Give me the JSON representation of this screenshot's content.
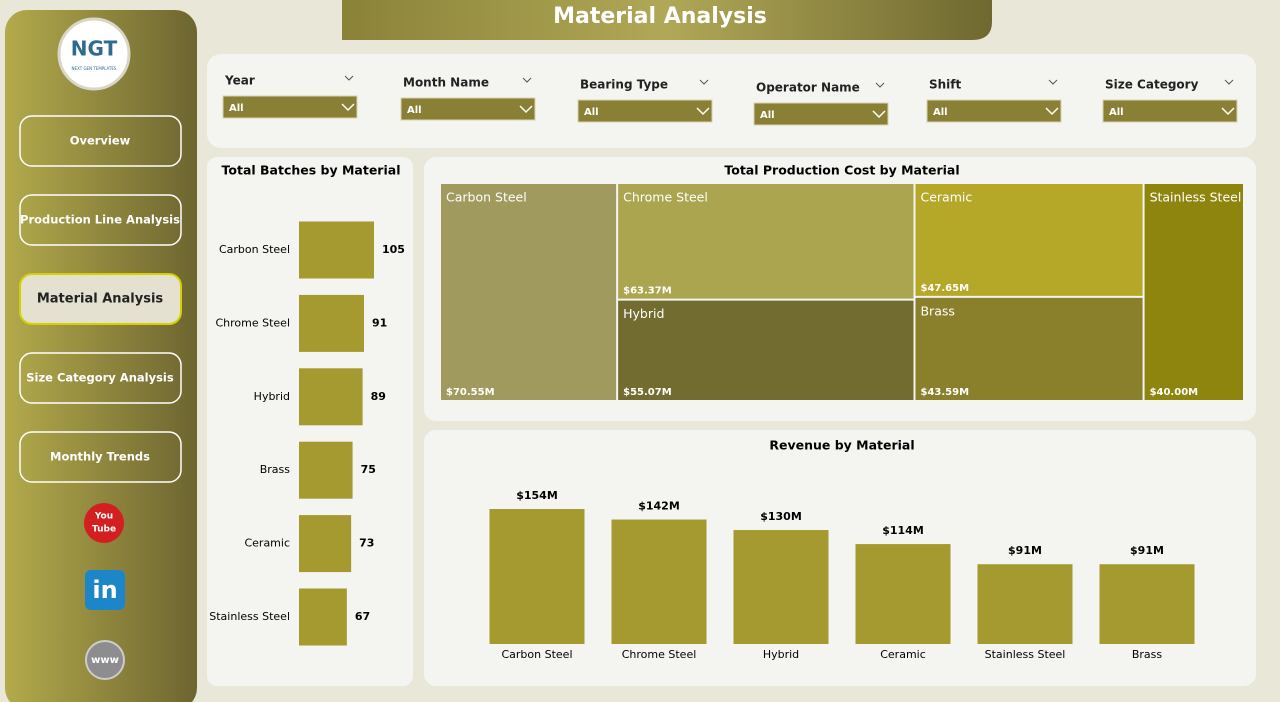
{
  "header": {
    "title": "Material Analysis"
  },
  "logo": {
    "text": "NGT",
    "subtext": "NEXT GEN TEMPLATES"
  },
  "nav": {
    "items": [
      "Overview",
      "Production Line Analysis",
      "Material Analysis",
      "Size Category Analysis",
      "Monthly Trends"
    ],
    "active": 2
  },
  "social": {
    "youtube": [
      "You",
      "Tube"
    ],
    "linkedin": "in",
    "web": "www"
  },
  "filters": [
    {
      "label": "Year",
      "value": "All"
    },
    {
      "label": "Month Name",
      "value": "All"
    },
    {
      "label": "Bearing Type",
      "value": "All"
    },
    {
      "label": "Operator Name",
      "value": "All"
    },
    {
      "label": "Shift",
      "value": "All"
    },
    {
      "label": "Size Category",
      "value": "All"
    }
  ],
  "chart_data": [
    {
      "type": "hbar",
      "title": "Total Batches by Material",
      "categories": [
        "Carbon Steel",
        "Chrome Steel",
        "Hybrid",
        "Brass",
        "Ceramic",
        "Stainless Steel"
      ],
      "values": [
        105,
        91,
        89,
        75,
        73,
        67
      ],
      "color": "#a59a2f"
    },
    {
      "type": "treemap",
      "title": "Total Production Cost by Material",
      "categories": [
        "Carbon Steel",
        "Chrome Steel",
        "Hybrid",
        "Ceramic",
        "Brass",
        "Stainless Steel"
      ],
      "values": [
        70.55,
        63.37,
        55.07,
        47.65,
        43.59,
        40.0
      ],
      "value_labels": [
        "$70.55M",
        "$63.37M",
        "$55.07M",
        "$47.65M",
        "$43.59M",
        "$40.00M"
      ],
      "colors": [
        "#a09a5e",
        "#aba550",
        "#736c30",
        "#b5a828",
        "#8a7f2b",
        "#8e850f"
      ]
    },
    {
      "type": "bar",
      "title": "Revenue by Material",
      "categories": [
        "Carbon Steel",
        "Chrome Steel",
        "Hybrid",
        "Ceramic",
        "Stainless Steel",
        "Brass"
      ],
      "values": [
        154,
        142,
        130,
        114,
        91,
        91
      ],
      "value_labels": [
        "$154M",
        "$142M",
        "$130M",
        "$114M",
        "$91M",
        "$91M"
      ],
      "color": "#a59a2f"
    }
  ]
}
